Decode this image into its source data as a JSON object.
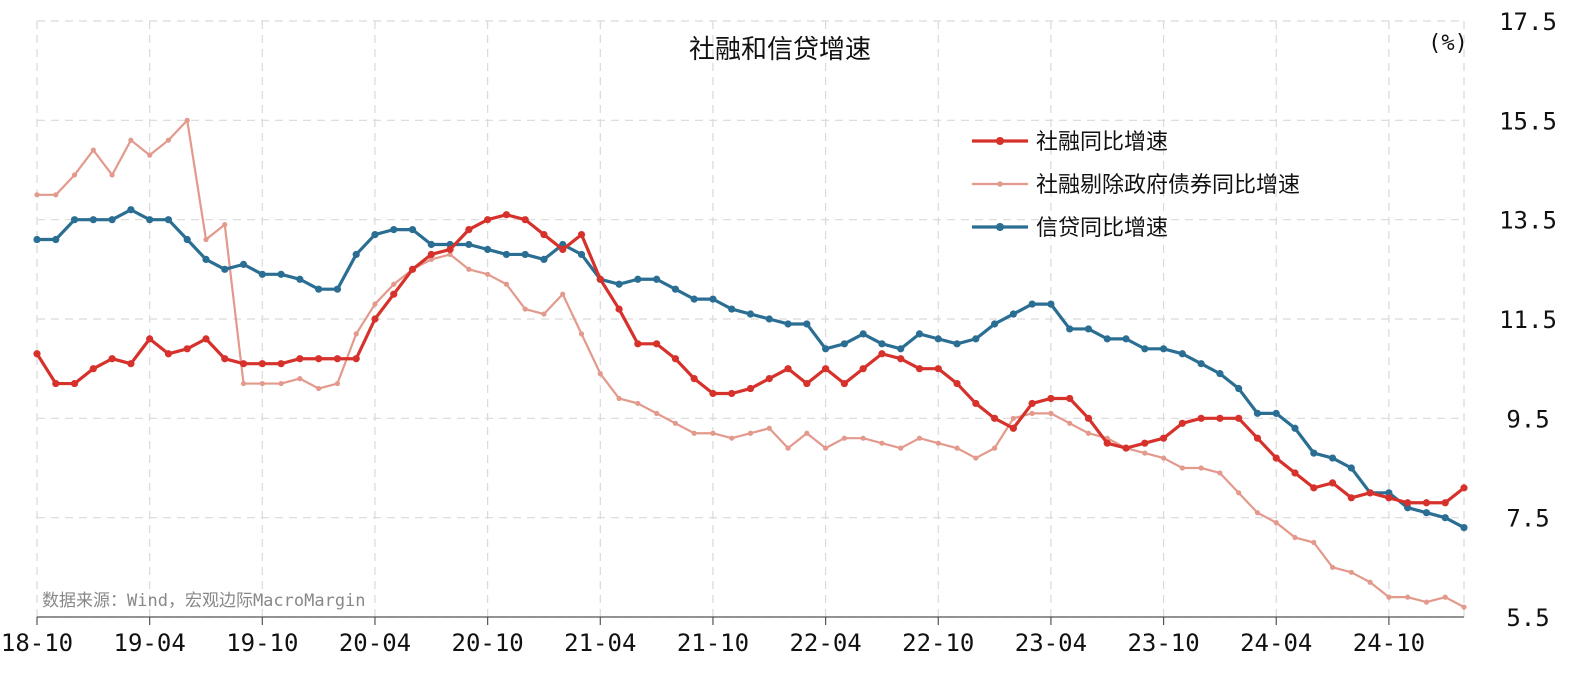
{
  "chart_data": {
    "type": "line",
    "title": "社融和信贷增速",
    "unit_label": "(%)",
    "source": "数据来源：Wind，宏观边际MacroMargin",
    "y_axis": {
      "position": "right",
      "min": 5.5,
      "max": 17.5,
      "ticks": [
        5.5,
        7.5,
        9.5,
        11.5,
        13.5,
        15.5,
        17.5
      ],
      "tick_labels": [
        "5.5",
        "7.5",
        "9.5",
        "11.5",
        "13.5",
        "15.5",
        "17.5"
      ]
    },
    "x_axis": {
      "tick_labels": [
        "18-10",
        "19-04",
        "19-10",
        "20-04",
        "20-10",
        "21-04",
        "21-10",
        "22-04",
        "22-10",
        "23-04",
        "23-10",
        "24-04",
        "24-10"
      ]
    },
    "grid": true,
    "legend_position": "top-right",
    "x": [
      "2018-10",
      "2018-11",
      "2018-12",
      "2019-01",
      "2019-02",
      "2019-03",
      "2019-04",
      "2019-05",
      "2019-06",
      "2019-07",
      "2019-08",
      "2019-09",
      "2019-10",
      "2019-11",
      "2019-12",
      "2020-01",
      "2020-02",
      "2020-03",
      "2020-04",
      "2020-05",
      "2020-06",
      "2020-07",
      "2020-08",
      "2020-09",
      "2020-10",
      "2020-11",
      "2020-12",
      "2021-01",
      "2021-02",
      "2021-03",
      "2021-04",
      "2021-05",
      "2021-06",
      "2021-07",
      "2021-08",
      "2021-09",
      "2021-10",
      "2021-11",
      "2021-12",
      "2022-01",
      "2022-02",
      "2022-03",
      "2022-04",
      "2022-05",
      "2022-06",
      "2022-07",
      "2022-08",
      "2022-09",
      "2022-10",
      "2022-11",
      "2022-12",
      "2023-01",
      "2023-02",
      "2023-03",
      "2023-04",
      "2023-05",
      "2023-06",
      "2023-07",
      "2023-08",
      "2023-09",
      "2023-10",
      "2023-11",
      "2023-12",
      "2024-01",
      "2024-02",
      "2024-03",
      "2024-04",
      "2024-05",
      "2024-06",
      "2024-07",
      "2024-08",
      "2024-09",
      "2024-10",
      "2024-11",
      "2024-12",
      "2025-01",
      "2025-02"
    ],
    "series": [
      {
        "name": "社融同比增速",
        "color": "#d6312b",
        "values": [
          10.8,
          10.2,
          10.2,
          10.5,
          10.7,
          10.6,
          11.1,
          10.8,
          10.9,
          11.1,
          10.7,
          10.6,
          10.6,
          10.6,
          10.7,
          10.7,
          10.7,
          10.7,
          11.5,
          12.0,
          12.5,
          12.8,
          12.9,
          13.3,
          13.5,
          13.6,
          13.5,
          13.2,
          12.9,
          13.2,
          12.3,
          11.7,
          11.0,
          11.0,
          10.7,
          10.3,
          10.0,
          10.0,
          10.1,
          10.3,
          10.5,
          10.2,
          10.5,
          10.2,
          10.5,
          10.8,
          10.7,
          10.5,
          10.5,
          10.2,
          9.8,
          9.5,
          9.3,
          9.8,
          9.9,
          9.9,
          9.5,
          9.0,
          8.9,
          9.0,
          9.1,
          9.4,
          9.5,
          9.5,
          9.5,
          9.1,
          8.7,
          8.4,
          8.1,
          8.2,
          7.9,
          8.0,
          7.9,
          7.8,
          7.8,
          7.8,
          8.1
        ]
      },
      {
        "name": "社融剔除政府债券同比增速",
        "color": "#e3998c",
        "values": [
          14.0,
          14.0,
          14.4,
          14.9,
          14.4,
          15.1,
          14.8,
          15.1,
          15.5,
          13.1,
          13.4,
          10.2,
          10.2,
          10.2,
          10.3,
          10.1,
          10.2,
          11.2,
          11.8,
          12.2,
          12.5,
          12.7,
          12.8,
          12.5,
          12.4,
          12.2,
          11.7,
          11.6,
          12.0,
          11.2,
          10.4,
          9.9,
          9.8,
          9.6,
          9.4,
          9.2,
          9.2,
          9.1,
          9.2,
          9.3,
          8.9,
          9.2,
          8.9,
          9.1,
          9.1,
          9.0,
          8.9,
          9.1,
          9.0,
          8.9,
          8.7,
          8.9,
          9.5,
          9.6,
          9.6,
          9.4,
          9.2,
          9.1,
          8.9,
          8.8,
          8.7,
          8.5,
          8.5,
          8.4,
          8.0,
          7.6,
          7.4,
          7.1,
          7.0,
          6.5,
          6.4,
          6.2,
          5.9,
          5.9,
          5.8,
          5.9,
          5.7
        ]
      },
      {
        "name": "信贷同比增速",
        "color": "#2b6e93",
        "values": [
          13.1,
          13.1,
          13.5,
          13.5,
          13.5,
          13.7,
          13.5,
          13.5,
          13.1,
          12.7,
          12.5,
          12.6,
          12.4,
          12.4,
          12.3,
          12.1,
          12.1,
          12.8,
          13.2,
          13.3,
          13.3,
          13.0,
          13.0,
          13.0,
          12.9,
          12.8,
          12.8,
          12.7,
          13.0,
          12.8,
          12.3,
          12.2,
          12.3,
          12.3,
          12.1,
          11.9,
          11.9,
          11.7,
          11.6,
          11.5,
          11.4,
          11.4,
          10.9,
          11.0,
          11.2,
          11.0,
          10.9,
          11.2,
          11.1,
          11.0,
          11.1,
          11.4,
          11.6,
          11.8,
          11.8,
          11.3,
          11.3,
          11.1,
          11.1,
          10.9,
          10.9,
          10.8,
          10.6,
          10.4,
          10.1,
          9.6,
          9.6,
          9.3,
          8.8,
          8.7,
          8.5,
          8.0,
          8.0,
          7.7,
          7.6,
          7.5,
          7.3
        ]
      }
    ]
  }
}
